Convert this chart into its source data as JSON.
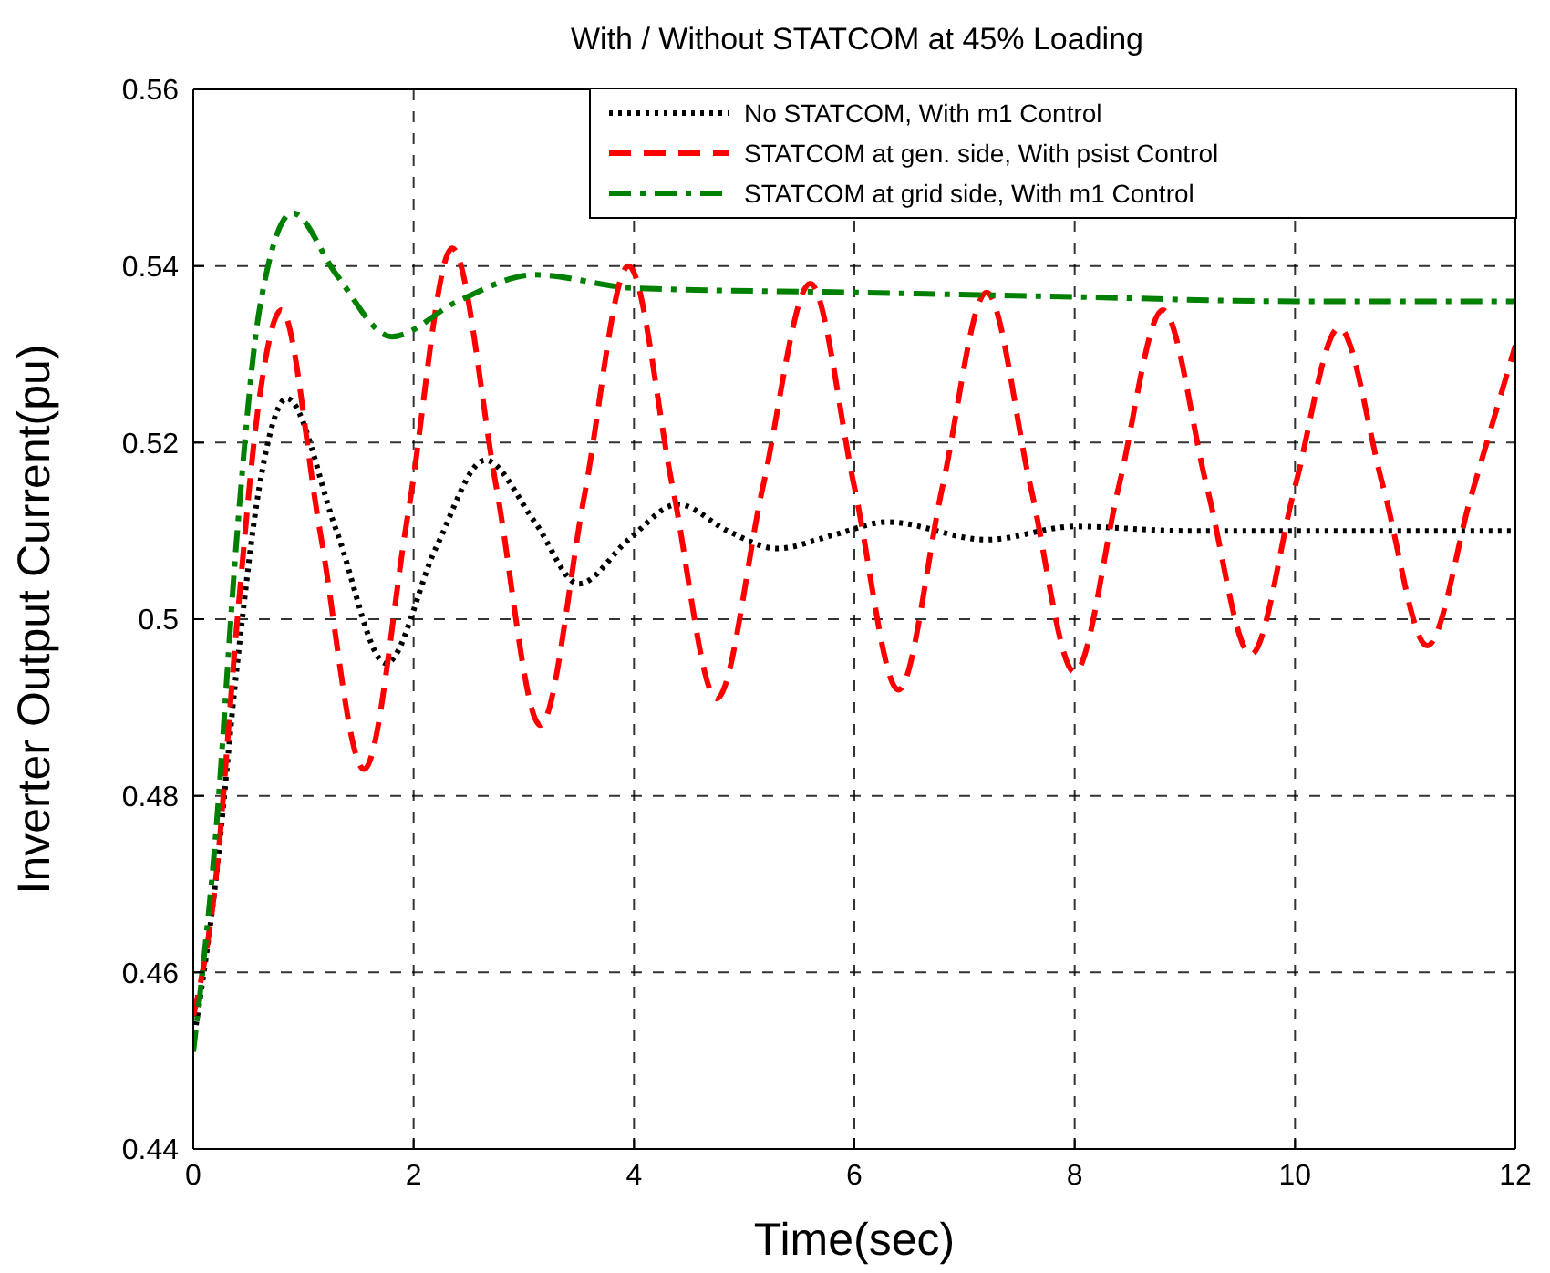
{
  "chart_data": {
    "type": "line",
    "title": "With / Without STATCOM at 45% Loading",
    "xlabel": "Time(sec)",
    "ylabel": "Inverter Output Current(pu)",
    "xlim": [
      0,
      12
    ],
    "xticks": [
      0,
      2,
      4,
      6,
      8,
      10,
      12
    ],
    "ylim": [
      0.44,
      0.56
    ],
    "yticks": [
      0.44,
      0.46,
      0.48,
      0.5,
      0.52,
      0.54,
      0.56
    ],
    "grid": true,
    "legend": "top right",
    "marker": "none",
    "series": [
      {
        "name": "No STATCOM, With m1 Control",
        "color": "#000000",
        "line_style": "dotted",
        "x": [
          0,
          0.2,
          0.4,
          0.6,
          0.85,
          1.3,
          1.75,
          2.2,
          2.65,
          3.1,
          3.5,
          3.95,
          4.4,
          4.85,
          5.3,
          5.8,
          6.3,
          7.2,
          8,
          9,
          10,
          11,
          12
        ],
        "values": [
          0.452,
          0.47,
          0.495,
          0.515,
          0.525,
          0.51,
          0.495,
          0.508,
          0.518,
          0.511,
          0.504,
          0.509,
          0.513,
          0.51,
          0.508,
          0.5095,
          0.511,
          0.509,
          0.5105,
          0.51,
          0.51,
          0.51,
          0.51
        ]
      },
      {
        "name": "STATCOM at gen. side, With psist Control",
        "color": "#ff0000",
        "line_style": "dashed",
        "x": [
          0,
          0.2,
          0.4,
          0.6,
          0.8,
          1.15,
          1.55,
          1.95,
          2.35,
          2.75,
          3.15,
          3.55,
          3.95,
          4.35,
          4.75,
          5.17,
          5.6,
          6,
          6.4,
          6.8,
          7.2,
          7.6,
          8,
          8.4,
          8.8,
          9.2,
          9.6,
          10,
          10.4,
          10.8,
          11.2,
          11.6,
          12
        ],
        "values": [
          0.455,
          0.47,
          0.5,
          0.525,
          0.535,
          0.51,
          0.483,
          0.512,
          0.542,
          0.515,
          0.488,
          0.514,
          0.54,
          0.515,
          0.491,
          0.515,
          0.538,
          0.515,
          0.492,
          0.515,
          0.537,
          0.515,
          0.494,
          0.515,
          0.535,
          0.515,
          0.496,
          0.515,
          0.533,
          0.515,
          0.497,
          0.514,
          0.531
        ]
      },
      {
        "name": "STATCOM at grid side, With m1 Control",
        "color": "#008000",
        "line_style": "dashdot",
        "x": [
          0,
          0.2,
          0.4,
          0.6,
          0.9,
          1.3,
          1.8,
          2.4,
          3.1,
          4,
          6,
          8,
          10,
          12
        ],
        "values": [
          0.451,
          0.475,
          0.51,
          0.535,
          0.546,
          0.539,
          0.532,
          0.536,
          0.539,
          0.5375,
          0.537,
          0.5365,
          0.536,
          0.536
        ]
      }
    ]
  }
}
